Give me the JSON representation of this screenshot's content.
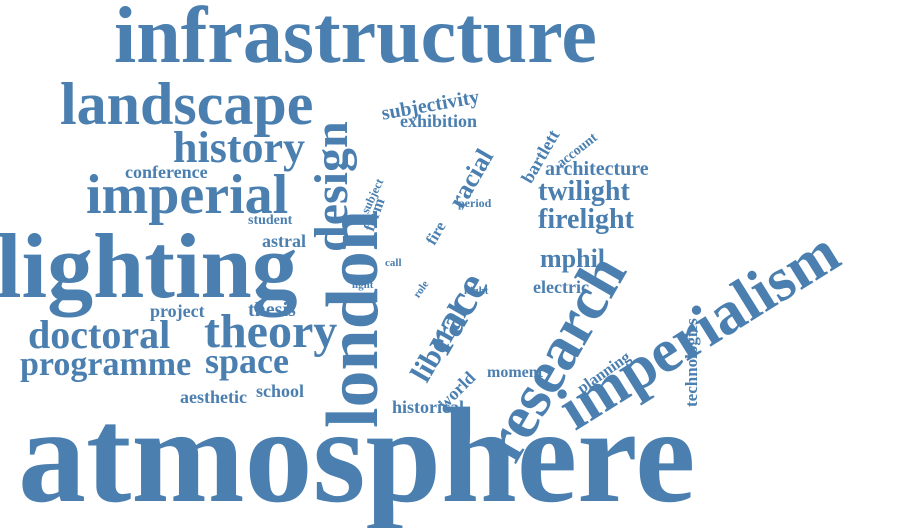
{
  "color": "#4a7fb0",
  "words": [
    {
      "id": "atmosphere",
      "text": "atmosphere"
    },
    {
      "id": "infrastructure",
      "text": "infrastructure"
    },
    {
      "id": "lighting",
      "text": "lighting"
    },
    {
      "id": "imperialism",
      "text": "imperialism"
    },
    {
      "id": "london",
      "text": "london"
    },
    {
      "id": "research",
      "text": "research"
    },
    {
      "id": "landscape",
      "text": "landscape"
    },
    {
      "id": "imperial",
      "text": "imperial"
    },
    {
      "id": "design",
      "text": "design"
    },
    {
      "id": "history",
      "text": "history"
    },
    {
      "id": "race",
      "text": "race"
    },
    {
      "id": "theory",
      "text": "theory"
    },
    {
      "id": "doctoral",
      "text": "doctoral"
    },
    {
      "id": "programme",
      "text": "programme"
    },
    {
      "id": "space",
      "text": "space"
    },
    {
      "id": "twilight",
      "text": "twilight"
    },
    {
      "id": "firelight",
      "text": "firelight"
    },
    {
      "id": "mphil",
      "text": "mphil"
    },
    {
      "id": "liberal",
      "text": "liberal"
    },
    {
      "id": "racial",
      "text": "racial"
    },
    {
      "id": "architecture",
      "text": "architecture"
    },
    {
      "id": "electric",
      "text": "electric"
    },
    {
      "id": "subjectivity",
      "text": "subjectivity"
    },
    {
      "id": "exhibition",
      "text": "exhibition"
    },
    {
      "id": "conference",
      "text": "conference"
    },
    {
      "id": "bartlett",
      "text": "bartlett"
    },
    {
      "id": "account",
      "text": "account"
    },
    {
      "id": "thesis",
      "text": "thesis"
    },
    {
      "id": "project",
      "text": "project"
    },
    {
      "id": "astral",
      "text": "astral"
    },
    {
      "id": "student",
      "text": "student"
    },
    {
      "id": "form",
      "text": "form"
    },
    {
      "id": "subject",
      "text": "subject"
    },
    {
      "id": "fire",
      "text": "fire"
    },
    {
      "id": "period",
      "text": "period"
    },
    {
      "id": "call",
      "text": "call"
    },
    {
      "id": "light",
      "text": "light"
    },
    {
      "id": "role",
      "text": "role"
    },
    {
      "id": "night",
      "text": "night"
    },
    {
      "id": "world",
      "text": "world"
    },
    {
      "id": "moment",
      "text": "moment"
    },
    {
      "id": "planning",
      "text": "planning"
    },
    {
      "id": "technologies",
      "text": "technologies"
    },
    {
      "id": "aesthetic",
      "text": "aesthetic"
    },
    {
      "id": "school",
      "text": "school"
    },
    {
      "id": "historical",
      "text": "historical"
    }
  ]
}
